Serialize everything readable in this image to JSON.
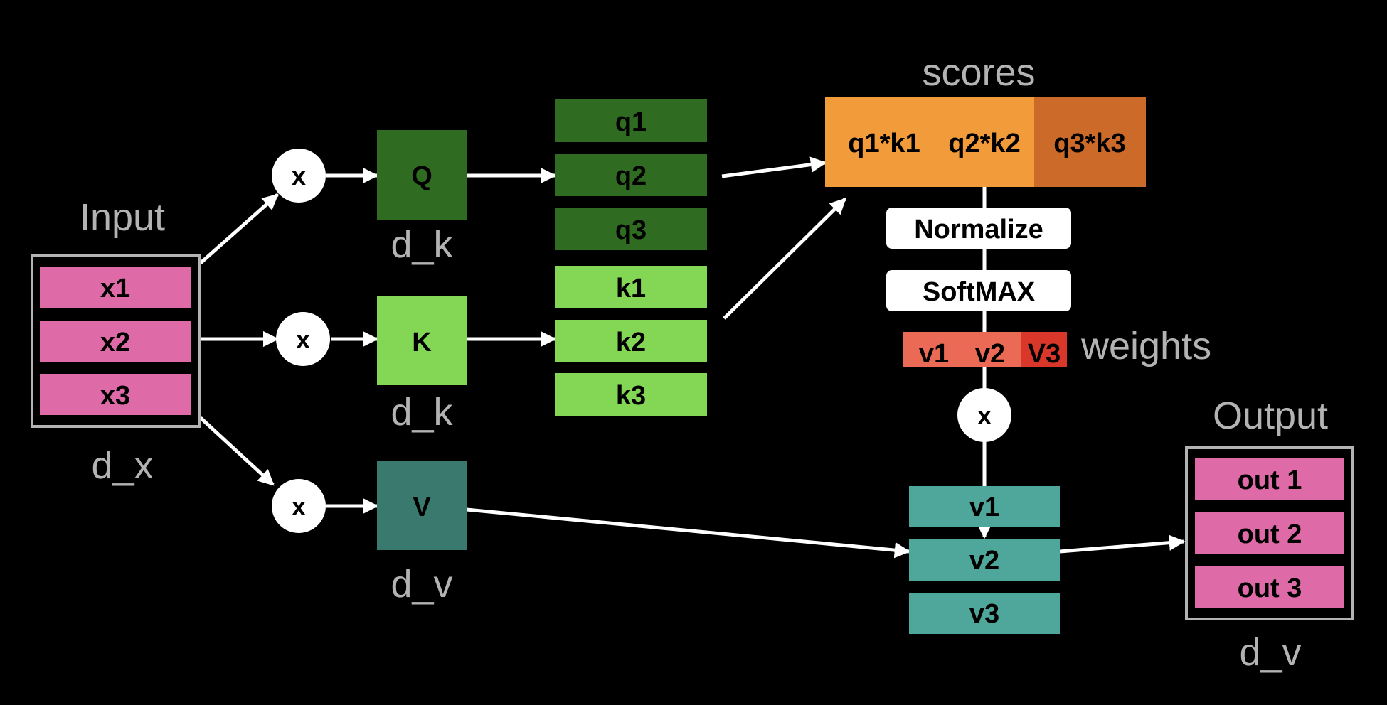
{
  "colors": {
    "background": "#000000",
    "input_pink": "#de6aa8",
    "q_dark_green": "#2f6b20",
    "k_light_green": "#84d655",
    "v_teal": "#3a7a6e",
    "v_rows_teal": "#4fa79b",
    "scores_orange": "#f19b3a",
    "scores_dark_orange": "#cc6a2a",
    "weights_salmon": "#ea6a55",
    "weights_red": "#d8372a",
    "label_gray": "#b3b3b3",
    "white": "#ffffff"
  },
  "input": {
    "title": "Input",
    "rows": [
      "x1",
      "x2",
      "x3"
    ],
    "dim": "d_x"
  },
  "multiply_symbol": "x",
  "projections": {
    "q": {
      "label": "Q",
      "dim": "d_k"
    },
    "k": {
      "label": "K",
      "dim": "d_k"
    },
    "v": {
      "label": "V",
      "dim": "d_v"
    }
  },
  "queries": [
    "q1",
    "q2",
    "q3"
  ],
  "keys": [
    "k1",
    "k2",
    "k3"
  ],
  "scores": {
    "title": "scores",
    "cells": [
      "q1*k1",
      "q2*k2",
      "q3*k3"
    ]
  },
  "steps": {
    "normalize": "Normalize",
    "softmax": "SoftMAX"
  },
  "weights": {
    "title": "weights",
    "cells": [
      "v1",
      "v2",
      "V3"
    ]
  },
  "values": [
    "v1",
    "v2",
    "v3"
  ],
  "output": {
    "title": "Output",
    "rows": [
      "out 1",
      "out 2",
      "out 3"
    ],
    "dim": "d_v"
  }
}
